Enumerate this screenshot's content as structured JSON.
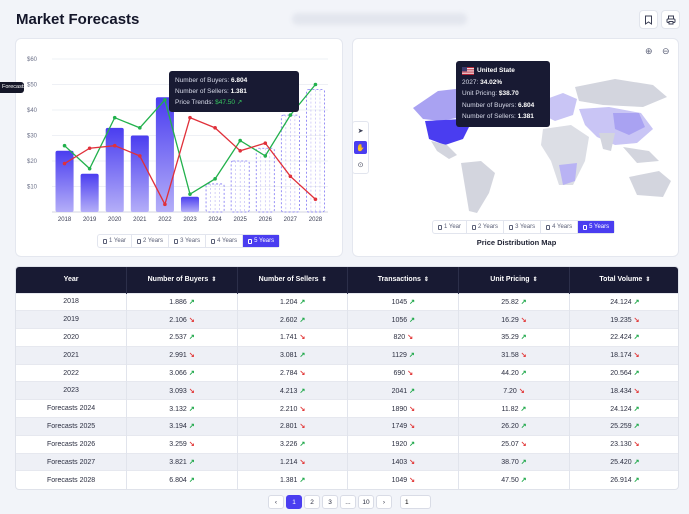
{
  "header": {
    "title": "Market Forecasts",
    "bookmark_icon": "bookmark-icon",
    "print_icon": "printer-icon"
  },
  "chart_card": {
    "side_tag": "Forecasts",
    "tooltip": {
      "buyers_label": "Number of Buyers:",
      "buyers_value": "6.804",
      "sellers_label": "Number of Sellers:",
      "sellers_value": "1.381",
      "trend_label": "Price Trends:",
      "trend_value": "$47.50"
    },
    "periods": [
      "1 Year",
      "2 Years",
      "3 Years",
      "4 Years",
      "5 Years"
    ],
    "active_period": "5 Years"
  },
  "chart_data": {
    "type": "bar",
    "categories": [
      "2018",
      "2019",
      "2020",
      "2021",
      "2022",
      "2023",
      "2024",
      "2025",
      "2026",
      "2027",
      "2028"
    ],
    "ylim": [
      0,
      60
    ],
    "yticks": [
      "$10",
      "$20",
      "$30",
      "$40",
      "$50",
      "$60"
    ],
    "series": [
      {
        "type": "bar",
        "values": [
          24,
          15,
          33,
          30,
          45,
          6,
          11,
          20,
          25,
          38,
          48
        ]
      },
      {
        "type": "line",
        "color": "#22b14c",
        "values": [
          26,
          17,
          37,
          33,
          44,
          7,
          13,
          28,
          22,
          38,
          50
        ]
      },
      {
        "type": "line",
        "color": "#e0303a",
        "values": [
          19,
          25,
          26,
          22,
          3,
          37,
          33,
          24,
          27,
          14,
          5
        ]
      }
    ],
    "forecast_from": "2024"
  },
  "map_card": {
    "title": "Price Distribution Map",
    "tooltip": {
      "country": "United State",
      "year_label": "2027:",
      "year_value": "34.02%",
      "pricing_label": "Unit Pricing:",
      "pricing_value": "$38.70",
      "buyers_label": "Number of Buyers:",
      "buyers_value": "6.804",
      "sellers_label": "Number of Sellers:",
      "sellers_value": "1.381"
    },
    "periods": [
      "1 Year",
      "2 Years",
      "3 Years",
      "4 Years",
      "5 Years"
    ],
    "active_period": "5 Years",
    "zoom_in_icon": "zoom-in-icon",
    "zoom_out_icon": "zoom-out-icon",
    "tools": [
      "navigate-icon",
      "hand-icon",
      "crosshair-icon"
    ]
  },
  "table": {
    "headers": [
      "Year",
      "Number of Buyers",
      "Number of Sellers",
      "Transactions",
      "Unit Pricing",
      "Total Volume"
    ],
    "rows": [
      [
        "2018",
        "1.886",
        "up",
        "1.204",
        "up",
        "1045",
        "up",
        "25.82",
        "up",
        "24.124",
        "up"
      ],
      [
        "2019",
        "2.106",
        "down",
        "2.602",
        "up",
        "1056",
        "up",
        "16.29",
        "down",
        "19.235",
        "down"
      ],
      [
        "2020",
        "2.537",
        "up",
        "1.741",
        "down",
        "820",
        "down",
        "35.29",
        "up",
        "22.424",
        "up"
      ],
      [
        "2021",
        "2.991",
        "down",
        "3.081",
        "up",
        "1129",
        "up",
        "31.58",
        "down",
        "18.174",
        "down"
      ],
      [
        "2022",
        "3.066",
        "up",
        "2.784",
        "down",
        "690",
        "down",
        "44.20",
        "up",
        "20.564",
        "up"
      ],
      [
        "2023",
        "3.093",
        "down",
        "4.213",
        "up",
        "2041",
        "up",
        "7.20",
        "down",
        "18.434",
        "down"
      ],
      [
        "Forecasts 2024",
        "3.132",
        "up",
        "2.210",
        "down",
        "1890",
        "down",
        "11.82",
        "up",
        "24.124",
        "up"
      ],
      [
        "Forecasts 2025",
        "3.194",
        "up",
        "2.801",
        "down",
        "1749",
        "down",
        "26.20",
        "up",
        "25.259",
        "up"
      ],
      [
        "Forecasts 2026",
        "3.259",
        "down",
        "3.226",
        "up",
        "1920",
        "up",
        "25.07",
        "down",
        "23.130",
        "down"
      ],
      [
        "Forecasts 2027",
        "3.821",
        "up",
        "1.214",
        "down",
        "1403",
        "down",
        "38.70",
        "up",
        "25.420",
        "up"
      ],
      [
        "Forecasts 2028",
        "6.804",
        "up",
        "1.381",
        "up",
        "1049",
        "down",
        "47.50",
        "up",
        "26.914",
        "up"
      ]
    ]
  },
  "pagination": {
    "prev": "‹",
    "pages": [
      "1",
      "2",
      "3",
      "...",
      "10"
    ],
    "active": "1",
    "next": "›",
    "input_value": "1"
  }
}
